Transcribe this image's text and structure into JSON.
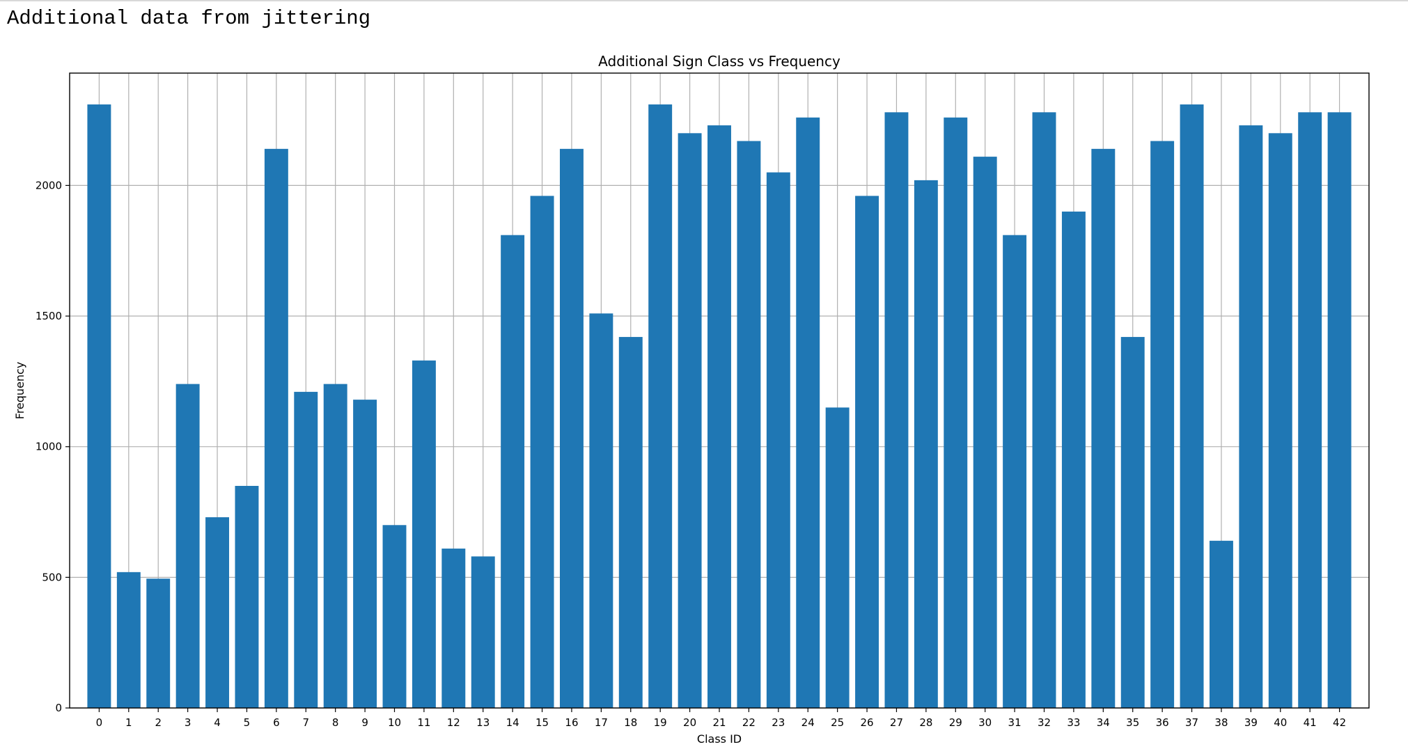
{
  "page": {
    "heading": "Additional data from jittering"
  },
  "chart_data": {
    "type": "bar",
    "title": "Additional Sign Class vs Frequency",
    "xlabel": "Class ID",
    "ylabel": "Frequency",
    "categories": [
      "0",
      "1",
      "2",
      "3",
      "4",
      "5",
      "6",
      "7",
      "8",
      "9",
      "10",
      "11",
      "12",
      "13",
      "14",
      "15",
      "16",
      "17",
      "18",
      "19",
      "20",
      "21",
      "22",
      "23",
      "24",
      "25",
      "26",
      "27",
      "28",
      "29",
      "30",
      "31",
      "32",
      "33",
      "34",
      "35",
      "36",
      "37",
      "38",
      "39",
      "40",
      "41",
      "42"
    ],
    "values": [
      2310,
      520,
      495,
      1240,
      730,
      850,
      2140,
      1210,
      1240,
      1180,
      700,
      1330,
      610,
      580,
      1810,
      1960,
      2140,
      1510,
      1420,
      2310,
      2200,
      2230,
      2170,
      2050,
      2260,
      1150,
      1960,
      2280,
      2020,
      2260,
      2110,
      1810,
      2280,
      1900,
      2140,
      1420,
      2170,
      2310,
      640,
      2230,
      2200,
      2280,
      2280
    ],
    "ylim": [
      0,
      2430
    ],
    "yticks": [
      0,
      500,
      1000,
      1500,
      2000
    ],
    "grid": true,
    "bar_color": "#1f77b4",
    "grid_color": "#b0b0b0"
  }
}
